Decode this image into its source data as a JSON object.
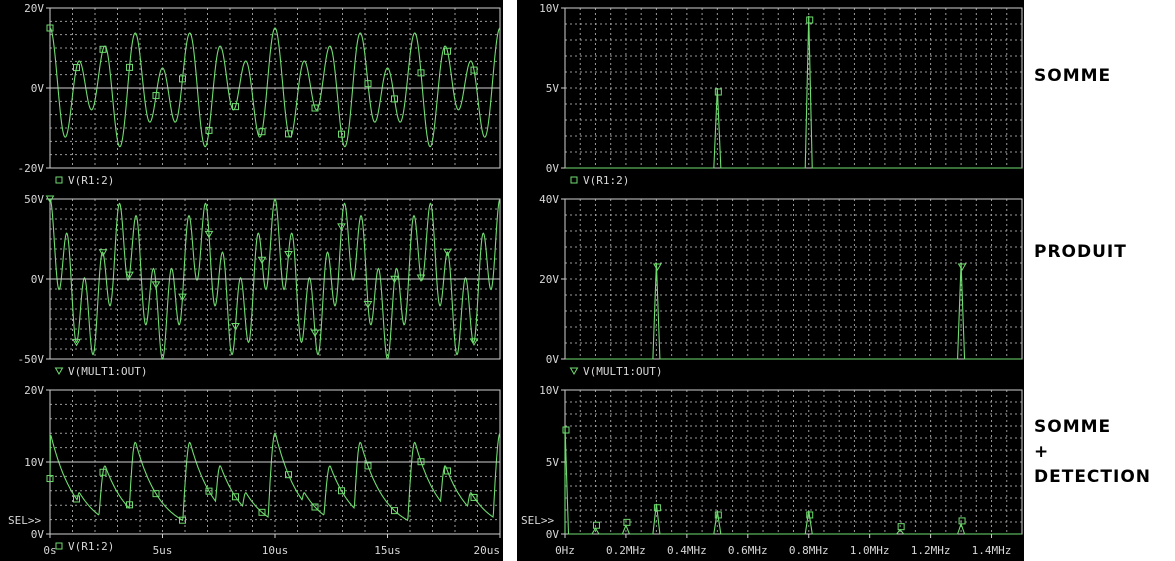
{
  "labels": {
    "somme": "SOMME",
    "produit": "PRODUIT",
    "detect_line1": "SOMME",
    "detect_line2": "+",
    "detect_line3": "DETECTION"
  },
  "colors": {
    "trace": "#6fdc6f",
    "grid": "#9a9a9a",
    "background": "#000000",
    "text": "#d8d8d8"
  },
  "chart_data": [
    {
      "type": "line",
      "domain": "time",
      "x_unit": "us",
      "xlim": [
        0,
        20
      ],
      "ylim": [
        -20,
        20
      ],
      "y_ticks": [
        "20V",
        "0V",
        "-20V"
      ],
      "legend": {
        "marker": "square",
        "label": "V(R1:2)"
      },
      "components": [
        {
          "freq_mhz": 0.5,
          "amp": 5
        },
        {
          "freq_mhz": 0.8,
          "amp": 10
        }
      ]
    },
    {
      "type": "line",
      "domain": "time",
      "x_unit": "us",
      "xlim": [
        0,
        20
      ],
      "ylim": [
        -50,
        50
      ],
      "y_ticks": [
        "50V",
        "0V",
        "-50V"
      ],
      "legend": {
        "marker": "triangle",
        "label": "V(MULT1:OUT)"
      },
      "components": [
        {
          "freq_mhz": 0.3,
          "amp": 25
        },
        {
          "freq_mhz": 1.3,
          "amp": 25
        }
      ]
    },
    {
      "type": "line",
      "domain": "time",
      "x_unit": "us",
      "xlim": [
        0,
        20
      ],
      "ylim": [
        0,
        20
      ],
      "y_ticks": [
        "20V",
        "10V",
        "0V"
      ],
      "legend": {
        "marker": "square",
        "label": "V(R1:2)"
      },
      "x_ticks": [
        "0s",
        "5us",
        "10us",
        "15us",
        "20us"
      ],
      "x_tick_values": [
        0,
        5,
        10,
        15,
        20
      ],
      "sel_label": "SEL>>"
    },
    {
      "type": "line",
      "domain": "frequency",
      "xlim": [
        0,
        1.5
      ],
      "x_unit": "MHz",
      "ylim": [
        0,
        10
      ],
      "y_ticks": [
        "10V",
        "5V",
        "0V"
      ],
      "legend": {
        "marker": "square",
        "label": "V(R1:2)"
      },
      "peaks": [
        {
          "freq_mhz": 0.5,
          "amp": 5
        },
        {
          "freq_mhz": 0.8,
          "amp": 9.5
        }
      ]
    },
    {
      "type": "line",
      "domain": "frequency",
      "xlim": [
        0,
        1.5
      ],
      "x_unit": "MHz",
      "ylim": [
        0,
        40
      ],
      "y_ticks": [
        "40V",
        "20V",
        "0V"
      ],
      "legend": {
        "marker": "triangle",
        "label": "V(MULT1:OUT)"
      },
      "peaks": [
        {
          "freq_mhz": 0.3,
          "amp": 24
        },
        {
          "freq_mhz": 1.3,
          "amp": 24
        }
      ]
    },
    {
      "type": "line",
      "domain": "frequency",
      "xlim": [
        0,
        1.5
      ],
      "x_unit": "MHz",
      "ylim": [
        0,
        10
      ],
      "y_ticks": [
        "10V",
        "5V",
        "0V"
      ],
      "x_ticks": [
        "0Hz",
        "0.2MHz",
        "0.4MHz",
        "0.6MHz",
        "0.8MHz",
        "1.0MHz",
        "1.2MHz",
        "1.4MHz"
      ],
      "x_tick_values": [
        0,
        0.2,
        0.4,
        0.6,
        0.8,
        1.0,
        1.2,
        1.4
      ],
      "peaks": [
        {
          "freq_mhz": 0,
          "amp": 7.5
        },
        {
          "freq_mhz": 0.1,
          "amp": 0.4
        },
        {
          "freq_mhz": 0.2,
          "amp": 0.6
        },
        {
          "freq_mhz": 0.3,
          "amp": 2.1
        },
        {
          "freq_mhz": 0.5,
          "amp": 1.6
        },
        {
          "freq_mhz": 0.8,
          "amp": 1.6
        },
        {
          "freq_mhz": 1.1,
          "amp": 0.3
        },
        {
          "freq_mhz": 1.3,
          "amp": 0.7
        }
      ],
      "sel_label": "SEL>>"
    }
  ]
}
